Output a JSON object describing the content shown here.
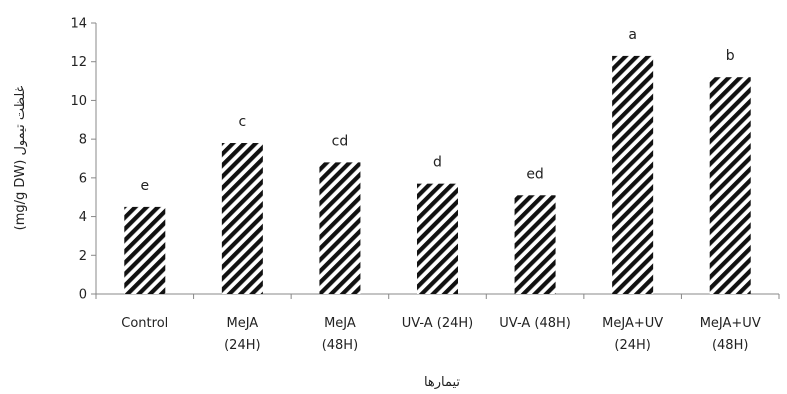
{
  "chart_data": {
    "type": "bar",
    "categories": [
      [
        "Control"
      ],
      [
        "MeJA",
        "(24H)"
      ],
      [
        "MeJA",
        "(48H)"
      ],
      [
        "UV-A (24H)"
      ],
      [
        "UV-A (48H)"
      ],
      [
        "MeJA+UV",
        "(24H)"
      ],
      [
        "MeJA+UV",
        "(48H)"
      ]
    ],
    "values": [
      4.5,
      7.8,
      6.8,
      5.7,
      5.1,
      12.3,
      11.2
    ],
    "significance_labels": [
      "e",
      "c",
      "cd",
      "d",
      "ed",
      "a",
      "b"
    ],
    "xlabel": "تیمارها",
    "ylabel": "(mg/g DW) غلظت تیمول",
    "ylim": [
      0,
      14
    ],
    "yticks": [
      0,
      2,
      4,
      6,
      8,
      10,
      12,
      14
    ],
    "grid": false,
    "legend": "none",
    "bar_fill": "#111111",
    "bar_pattern": "diagonal-hatch"
  }
}
